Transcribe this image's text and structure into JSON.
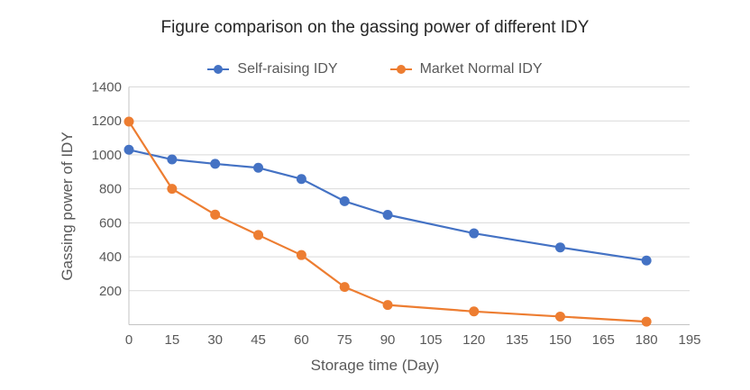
{
  "chart_data": {
    "type": "line",
    "title": "Figure comparison on the gassing power of different IDY",
    "xlabel": "Storage time (Day)",
    "ylabel": "Gassing power of IDY",
    "x": [
      0,
      15,
      30,
      45,
      60,
      75,
      90,
      120,
      150,
      180
    ],
    "series": [
      {
        "name": "Self-raising IDY",
        "color": "#4472C4",
        "values": [
          1030,
          973,
          947,
          924,
          858,
          727,
          647,
          538,
          455,
          378
        ]
      },
      {
        "name": "Market Normal IDY",
        "color": "#ED7D31",
        "values": [
          1196,
          800,
          648,
          528,
          410,
          222,
          116,
          78,
          48,
          18
        ]
      }
    ],
    "xlim": [
      0,
      195
    ],
    "ylim": [
      0,
      1400
    ],
    "xticks": [
      0,
      15,
      30,
      45,
      60,
      75,
      90,
      105,
      120,
      135,
      150,
      165,
      180,
      195
    ],
    "yticks": [
      0,
      200,
      400,
      600,
      800,
      1000,
      1200,
      1400
    ],
    "grid": true,
    "grid_axis": "horizontal",
    "legend_position": "top",
    "style": {
      "title_color": "#262626",
      "tick_label_color": "#595959",
      "axis_title_color": "#595959",
      "legend_text_color": "#595959",
      "grid_color": "#D9D9D9",
      "axis_line_color": "#C3C3C3",
      "background_color": "#FFFFFF"
    }
  }
}
